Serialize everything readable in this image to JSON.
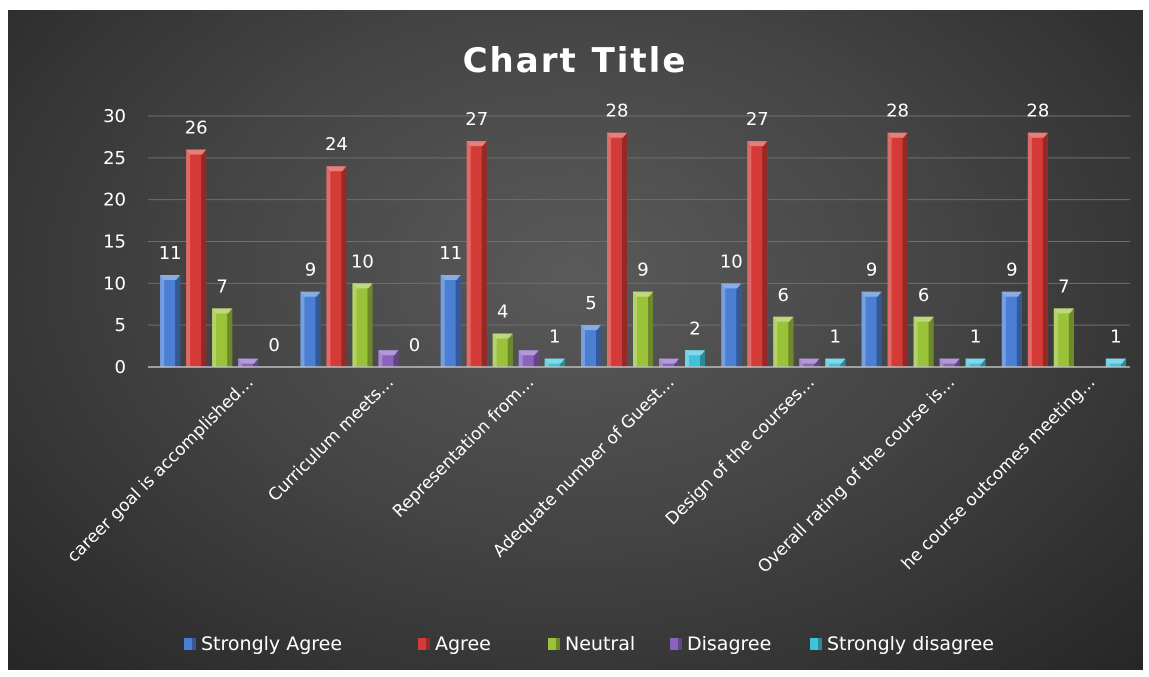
{
  "chart_data": {
    "type": "bar",
    "title": "Chart Title",
    "categories": [
      "career goal is accomplished…",
      "Curriculum meets…",
      "Representation from…",
      "Adequate number of Guest…",
      "Design of the courses…",
      "Overall rating of the course is…",
      "he course outcomes meeting…"
    ],
    "series": [
      {
        "name": "Strongly Agree",
        "color": "#4a7fd4",
        "values": [
          11,
          9,
          11,
          5,
          10,
          9,
          9
        ]
      },
      {
        "name": "Agree",
        "color": "#d43a36",
        "values": [
          26,
          24,
          27,
          28,
          27,
          28,
          28
        ]
      },
      {
        "name": "Neutral",
        "color": "#9bc33a",
        "values": [
          7,
          10,
          4,
          9,
          6,
          6,
          7
        ]
      },
      {
        "name": "Disagree",
        "color": "#8a62c0",
        "values": [
          1,
          2,
          2,
          1,
          1,
          1,
          null
        ]
      },
      {
        "name": "Strongly disagree",
        "color": "#3fc3dc",
        "values": [
          0,
          0,
          1,
          2,
          1,
          1,
          1
        ]
      }
    ],
    "data_labels": [
      [
        11,
        9,
        11,
        5,
        10,
        9,
        9
      ],
      [
        26,
        24,
        27,
        28,
        27,
        28,
        28
      ],
      [
        7,
        10,
        4,
        9,
        6,
        6,
        7
      ],
      [
        null,
        null,
        null,
        null,
        null,
        null,
        null
      ],
      [
        0,
        0,
        1,
        2,
        1,
        1,
        1
      ]
    ],
    "yticks": [
      0,
      5,
      10,
      15,
      20,
      25,
      30
    ],
    "ylim": [
      0,
      30
    ],
    "grid": true,
    "legend_position": "bottom"
  }
}
